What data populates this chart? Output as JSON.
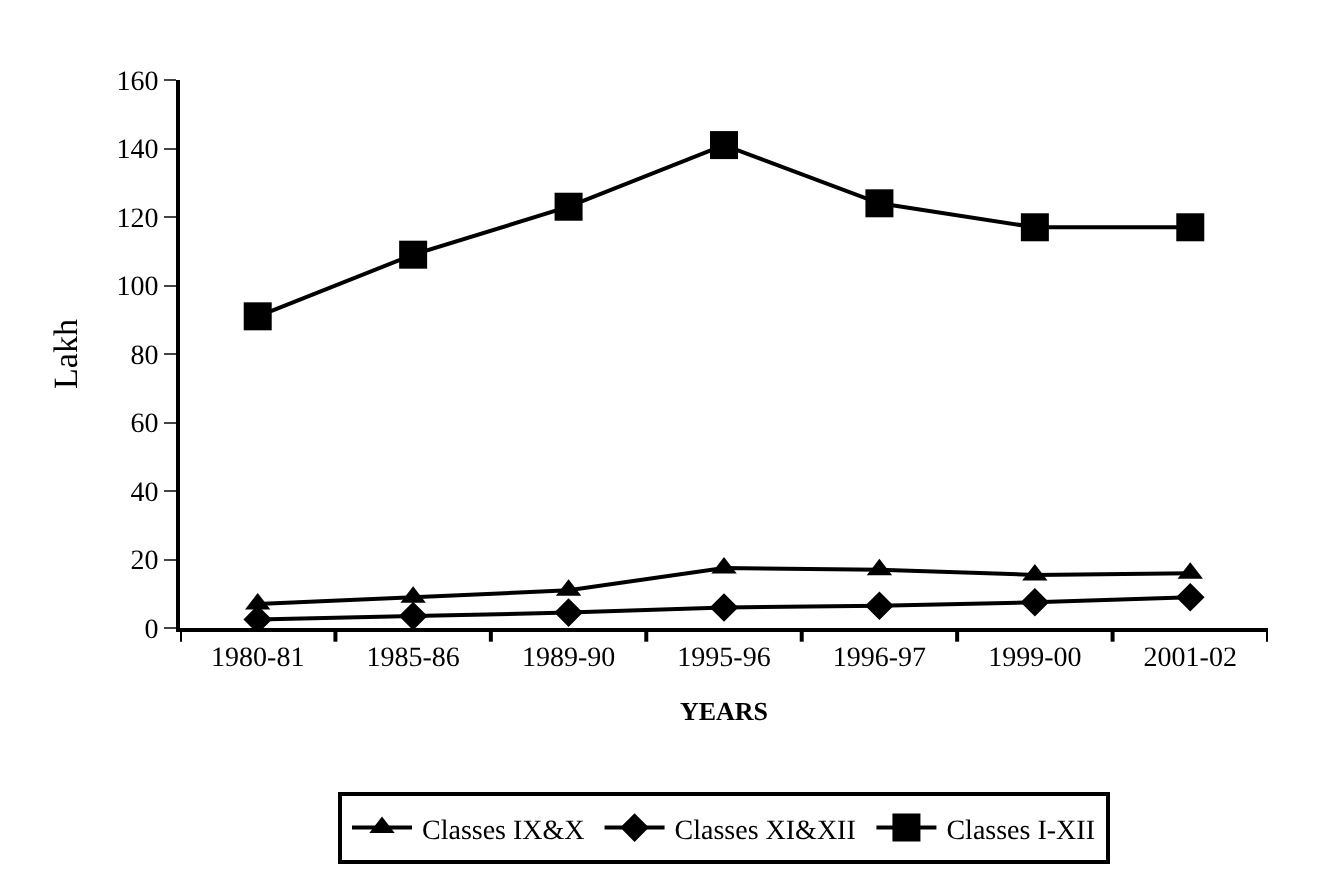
{
  "chart_data": {
    "type": "line",
    "xlabel": "YEARS",
    "ylabel": "Lakh",
    "categories": [
      "1980-81",
      "1985-86",
      "1989-90",
      "1995-96",
      "1996-97",
      "1999-00",
      "2001-02"
    ],
    "series": [
      {
        "name": "Classes IX&X",
        "color": "#000000",
        "marker": "triangle",
        "values": [
          7,
          9,
          11,
          17.5,
          17,
          15.5,
          16
        ]
      },
      {
        "name": "Classes XI&XII",
        "color": "#000000",
        "marker": "diamond",
        "values": [
          2.5,
          3.5,
          4.5,
          6,
          6.5,
          7.5,
          9
        ]
      },
      {
        "name": "Classes I-XII",
        "color": "#000000",
        "marker": "square",
        "values": [
          91,
          109,
          123,
          141,
          124,
          117,
          117
        ]
      }
    ],
    "ylim": [
      0,
      160
    ],
    "yticks": [
      0,
      20,
      40,
      60,
      80,
      100,
      120,
      140,
      160
    ],
    "legend": "bottom"
  }
}
